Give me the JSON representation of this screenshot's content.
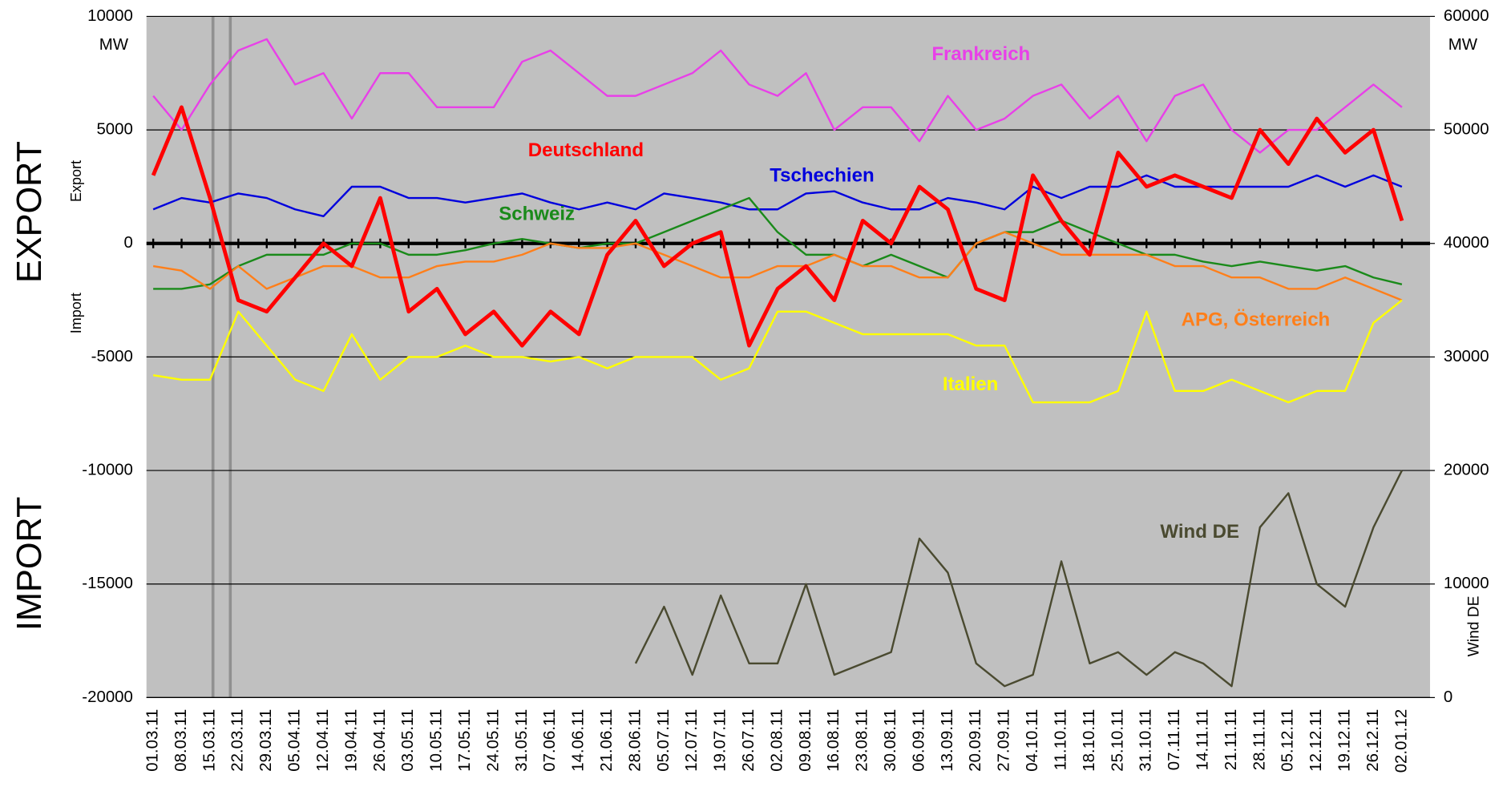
{
  "chart_data": {
    "type": "line",
    "y_unit": "MW",
    "y2_unit": "MW",
    "y2_label": "Wind DE",
    "side_labels": {
      "export_big": "EXPORT",
      "import_big": "IMPORT",
      "export_small": "Export",
      "import_small": "Import"
    },
    "categories": [
      "01.03.11",
      "08.03.11",
      "15.03.11",
      "22.03.11",
      "29.03.11",
      "05.04.11",
      "12.04.11",
      "19.04.11",
      "26.04.11",
      "03.05.11",
      "10.05.11",
      "17.05.11",
      "24.05.11",
      "31.05.11",
      "07.06.11",
      "14.06.11",
      "21.06.11",
      "28.06.11",
      "05.07.11",
      "12.07.11",
      "19.07.11",
      "26.07.11",
      "02.08.11",
      "09.08.11",
      "16.08.11",
      "23.08.11",
      "30.08.11",
      "06.09.11",
      "13.09.11",
      "20.09.11",
      "27.09.11",
      "04.10.11",
      "11.10.11",
      "18.10.11",
      "25.10.11",
      "31.10.11",
      "07.11.11",
      "14.11.11",
      "21.11.11",
      "28.11.11",
      "05.12.11",
      "12.12.11",
      "19.12.11",
      "26.12.11",
      "02.01.12"
    ],
    "ylim": [
      -20000,
      10000
    ],
    "yticks": [
      10000,
      5000,
      0,
      -5000,
      -10000,
      -15000,
      -20000
    ],
    "y2lim": [
      0,
      60000
    ],
    "y2ticks": [
      60000,
      50000,
      40000,
      30000,
      20000,
      10000,
      0
    ],
    "grid": true,
    "series": [
      {
        "name": "Frankreich",
        "color": "#e840e8",
        "values": [
          6500,
          5000,
          7000,
          8500,
          9000,
          7000,
          7500,
          5500,
          7500,
          7500,
          6000,
          6000,
          6000,
          8000,
          8500,
          7500,
          6500,
          6500,
          7000,
          7500,
          8500,
          7000,
          6500,
          7500,
          5000,
          6000,
          6000,
          4500,
          6500,
          5000,
          5500,
          6500,
          7000,
          5500,
          6500,
          4500,
          6500,
          7000,
          5000,
          4000,
          5000,
          5000,
          6000,
          7000,
          6000
        ]
      },
      {
        "name": "Tschechien",
        "color": "#0000dd",
        "values": [
          1500,
          2000,
          1800,
          2200,
          2000,
          1500,
          1200,
          2500,
          2500,
          2000,
          2000,
          1800,
          2000,
          2200,
          1800,
          1500,
          1800,
          1500,
          2200,
          2000,
          1800,
          1500,
          1500,
          2200,
          2300,
          1800,
          1500,
          1500,
          2000,
          1800,
          1500,
          2500,
          2000,
          2500,
          2500,
          3000,
          2500,
          2500,
          2500,
          2500,
          2500,
          3000,
          2500,
          3000,
          2500
        ]
      },
      {
        "name": "Schweiz",
        "color": "#1a8a1a",
        "values": [
          -2000,
          -2000,
          -1800,
          -1000,
          -500,
          -500,
          -500,
          0,
          0,
          -500,
          -500,
          -300,
          0,
          200,
          0,
          -200,
          0,
          0,
          500,
          1000,
          1500,
          2000,
          500,
          -500,
          -500,
          -1000,
          -500,
          -1000,
          -1500,
          0,
          500,
          500,
          1000,
          500,
          0,
          -500,
          -500,
          -800,
          -1000,
          -800,
          -1000,
          -1200,
          -1000,
          -1500,
          -1800
        ]
      },
      {
        "name": "APG, Österreich",
        "color": "#ff7f1a",
        "values": [
          -1000,
          -1200,
          -2000,
          -1000,
          -2000,
          -1500,
          -1000,
          -1000,
          -1500,
          -1500,
          -1000,
          -800,
          -800,
          -500,
          0,
          -200,
          -200,
          0,
          -500,
          -1000,
          -1500,
          -1500,
          -1000,
          -1000,
          -500,
          -1000,
          -1000,
          -1500,
          -1500,
          0,
          500,
          0,
          -500,
          -500,
          -500,
          -500,
          -1000,
          -1000,
          -1500,
          -1500,
          -2000,
          -2000,
          -1500,
          -2000,
          -2500
        ]
      },
      {
        "name": "Italien",
        "color": "#ffff00",
        "values": [
          -5800,
          -6000,
          -6000,
          -3000,
          -4500,
          -6000,
          -6500,
          -4000,
          -6000,
          -5000,
          -5000,
          -4500,
          -5000,
          -5000,
          -5200,
          -5000,
          -5500,
          -5000,
          -5000,
          -5000,
          -6000,
          -5500,
          -3000,
          -3000,
          -3500,
          -4000,
          -4000,
          -4000,
          -4000,
          -4500,
          -4500,
          -7000,
          -7000,
          -7000,
          -6500,
          -3000,
          -6500,
          -6500,
          -6000,
          -6500,
          -7000,
          -6500,
          -6500,
          -3500,
          -2500
        ]
      },
      {
        "name": "Deutschland",
        "color": "#ff0000",
        "values": [
          3000,
          6000,
          2000,
          -2500,
          -3000,
          -1500,
          0,
          -1000,
          2000,
          -3000,
          -2000,
          -4000,
          -3000,
          -4500,
          -3000,
          -4000,
          -500,
          1000,
          -1000,
          0,
          500,
          -4500,
          -2000,
          -1000,
          -2500,
          1000,
          0,
          2500,
          1500,
          -2000,
          -2500,
          3000,
          1000,
          -500,
          4000,
          2500,
          3000,
          2500,
          2000,
          5000,
          3500,
          5500,
          4000,
          5000,
          1000
        ]
      },
      {
        "name": "Wind DE",
        "color": "#4a4a30",
        "axis": "y2",
        "values": [
          null,
          null,
          null,
          null,
          null,
          null,
          null,
          null,
          null,
          null,
          null,
          null,
          null,
          null,
          null,
          null,
          null,
          3000,
          8000,
          2000,
          9000,
          3000,
          3000,
          10000,
          2000,
          3000,
          4000,
          14000,
          11000,
          3000,
          1000,
          2000,
          12000,
          3000,
          4000,
          2000,
          4000,
          3000,
          1000,
          15000,
          18000,
          10000,
          8000,
          15000,
          20000
        ]
      }
    ]
  }
}
